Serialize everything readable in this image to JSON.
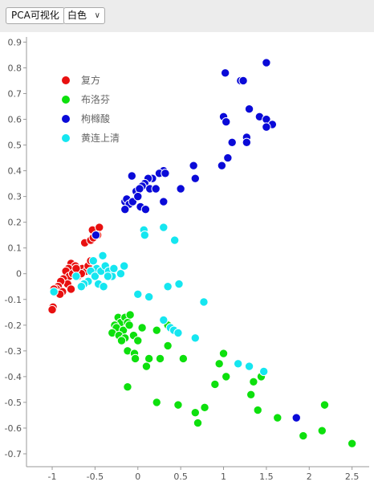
{
  "toolbar": {
    "pca_button_label": "PCA可视化",
    "theme_select_value": "白色",
    "theme_select_chevron": "chevron-down-icon"
  },
  "chart_data": {
    "type": "scatter",
    "title": "",
    "xlabel": "",
    "ylabel": "",
    "xlim": [
      -1.3,
      2.7
    ],
    "ylim": [
      -0.75,
      0.92
    ],
    "x_ticks": [
      -1,
      -0.5,
      0,
      0.5,
      1,
      1.5,
      2,
      2.5
    ],
    "x_tick_labels": [
      "-1",
      "-0.5",
      "0",
      "0.5",
      "1",
      "1.5",
      "2",
      "2.5"
    ],
    "y_ticks": [
      0.9,
      0.8,
      0.7,
      0.6,
      0.5,
      0.4,
      0.3,
      0.2,
      0.1,
      0,
      -0.1,
      -0.2,
      -0.3,
      -0.4,
      -0.5,
      -0.6,
      -0.7
    ],
    "y_tick_labels": [
      "0.9",
      "0.8",
      "0.7",
      "0.6",
      "0.5",
      "0.4",
      "0.3",
      "0.2",
      "0.1",
      "0",
      "-0.1",
      "-0.2",
      "-0.3",
      "-0.4",
      "-0.5",
      "-0.6",
      "-0.7"
    ],
    "grid": false,
    "legend_position": "top-left",
    "series": [
      {
        "name": "复方",
        "color": "#e81010",
        "points": [
          [
            -0.53,
            0.17
          ],
          [
            -0.45,
            0.18
          ],
          [
            -0.47,
            0.15
          ],
          [
            -0.62,
            0.12
          ],
          [
            -0.55,
            0.13
          ],
          [
            -0.78,
            0.04
          ],
          [
            -0.73,
            0.03
          ],
          [
            -0.65,
            0.02
          ],
          [
            -0.6,
            0.01
          ],
          [
            -0.81,
            0.02
          ],
          [
            -0.84,
            0.01
          ],
          [
            -0.8,
            -0.01
          ],
          [
            -0.87,
            -0.02
          ],
          [
            -0.82,
            -0.04
          ],
          [
            -0.78,
            -0.06
          ],
          [
            -0.9,
            -0.03
          ],
          [
            -0.93,
            -0.05
          ],
          [
            -0.95,
            -0.06
          ],
          [
            -0.88,
            -0.07
          ],
          [
            -0.91,
            -0.08
          ],
          [
            -0.98,
            -0.06
          ],
          [
            -0.76,
            0.0
          ],
          [
            -0.7,
            -0.01
          ],
          [
            -0.66,
            0.0
          ],
          [
            -0.72,
            0.02
          ],
          [
            -0.99,
            -0.13
          ],
          [
            -1.0,
            -0.14
          ],
          [
            -0.52,
            0.14
          ],
          [
            -0.58,
            0.03
          ],
          [
            -0.55,
            0.05
          ]
        ]
      },
      {
        "name": "布洛芬",
        "color": "#0de00d",
        "points": [
          [
            -0.23,
            -0.17
          ],
          [
            -0.2,
            -0.19
          ],
          [
            -0.15,
            -0.17
          ],
          [
            -0.12,
            -0.19
          ],
          [
            -0.09,
            -0.16
          ],
          [
            -0.27,
            -0.2
          ],
          [
            -0.25,
            -0.21
          ],
          [
            -0.17,
            -0.22
          ],
          [
            -0.1,
            -0.2
          ],
          [
            -0.05,
            -0.24
          ],
          [
            -0.3,
            -0.23
          ],
          [
            -0.22,
            -0.24
          ],
          [
            -0.15,
            -0.25
          ],
          [
            -0.19,
            -0.26
          ],
          [
            0.05,
            -0.21
          ],
          [
            0.22,
            -0.22
          ],
          [
            0.35,
            -0.2
          ],
          [
            0.35,
            -0.28
          ],
          [
            0.0,
            -0.26
          ],
          [
            -0.12,
            -0.3
          ],
          [
            -0.04,
            -0.31
          ],
          [
            -0.03,
            -0.33
          ],
          [
            0.13,
            -0.33
          ],
          [
            0.1,
            -0.36
          ],
          [
            0.26,
            -0.33
          ],
          [
            0.53,
            -0.33
          ],
          [
            0.95,
            -0.35
          ],
          [
            1.0,
            -0.31
          ],
          [
            1.03,
            -0.4
          ],
          [
            0.9,
            -0.43
          ],
          [
            -0.12,
            -0.44
          ],
          [
            0.22,
            -0.5
          ],
          [
            0.47,
            -0.51
          ],
          [
            0.78,
            -0.52
          ],
          [
            0.67,
            -0.54
          ],
          [
            0.7,
            -0.58
          ],
          [
            1.32,
            -0.47
          ],
          [
            1.4,
            -0.53
          ],
          [
            1.44,
            -0.4
          ],
          [
            1.63,
            -0.56
          ],
          [
            1.93,
            -0.63
          ],
          [
            2.18,
            -0.51
          ],
          [
            2.15,
            -0.61
          ],
          [
            2.5,
            -0.66
          ],
          [
            1.35,
            -0.42
          ]
        ]
      },
      {
        "name": "枸橼酸",
        "color": "#0a0ad8",
        "points": [
          [
            1.5,
            0.82
          ],
          [
            1.02,
            0.78
          ],
          [
            1.2,
            0.75
          ],
          [
            1.23,
            0.75
          ],
          [
            1.3,
            0.64
          ],
          [
            1.42,
            0.61
          ],
          [
            1.0,
            0.61
          ],
          [
            1.03,
            0.59
          ],
          [
            1.5,
            0.6
          ],
          [
            1.57,
            0.58
          ],
          [
            1.5,
            0.57
          ],
          [
            1.27,
            0.53
          ],
          [
            1.27,
            0.51
          ],
          [
            1.1,
            0.51
          ],
          [
            1.05,
            0.45
          ],
          [
            0.98,
            0.42
          ],
          [
            0.65,
            0.42
          ],
          [
            0.67,
            0.37
          ],
          [
            0.3,
            0.4
          ],
          [
            0.25,
            0.39
          ],
          [
            0.32,
            0.39
          ],
          [
            0.17,
            0.37
          ],
          [
            0.12,
            0.37
          ],
          [
            0.08,
            0.35
          ],
          [
            -0.07,
            0.38
          ],
          [
            0.05,
            0.34
          ],
          [
            -0.02,
            0.32
          ],
          [
            0.02,
            0.33
          ],
          [
            0.14,
            0.33
          ],
          [
            0.21,
            0.33
          ],
          [
            0.5,
            0.33
          ],
          [
            -0.15,
            0.28
          ],
          [
            -0.13,
            0.29
          ],
          [
            -0.1,
            0.27
          ],
          [
            -0.06,
            0.28
          ],
          [
            0.0,
            0.3
          ],
          [
            0.3,
            0.28
          ],
          [
            0.03,
            0.26
          ],
          [
            0.09,
            0.25
          ],
          [
            -0.15,
            0.25
          ],
          [
            -0.49,
            0.15
          ],
          [
            1.85,
            -0.56
          ]
        ]
      },
      {
        "name": "黄连上清",
        "color": "#15e6f0",
        "points": [
          [
            0.07,
            0.17
          ],
          [
            0.08,
            0.15
          ],
          [
            0.3,
            0.18
          ],
          [
            0.43,
            0.13
          ],
          [
            -0.41,
            0.07
          ],
          [
            -0.52,
            0.05
          ],
          [
            -0.48,
            0.02
          ],
          [
            -0.55,
            0.01
          ],
          [
            -0.5,
            -0.01
          ],
          [
            -0.43,
            0.01
          ],
          [
            -0.38,
            0.03
          ],
          [
            -0.34,
            0.01
          ],
          [
            -0.3,
            -0.01
          ],
          [
            -0.16,
            0.03
          ],
          [
            -0.28,
            0.02
          ],
          [
            -0.46,
            -0.04
          ],
          [
            -0.4,
            -0.05
          ],
          [
            -0.58,
            -0.03
          ],
          [
            -0.63,
            -0.04
          ],
          [
            -0.66,
            -0.05
          ],
          [
            -0.72,
            -0.01
          ],
          [
            -0.98,
            -0.07
          ],
          [
            0.0,
            -0.08
          ],
          [
            0.13,
            -0.09
          ],
          [
            0.35,
            -0.05
          ],
          [
            0.48,
            -0.04
          ],
          [
            0.77,
            -0.11
          ],
          [
            0.3,
            -0.18
          ],
          [
            0.38,
            -0.21
          ],
          [
            0.42,
            -0.22
          ],
          [
            0.47,
            -0.23
          ],
          [
            0.67,
            -0.25
          ],
          [
            1.17,
            -0.35
          ],
          [
            1.3,
            -0.36
          ],
          [
            1.47,
            -0.38
          ],
          [
            -0.35,
            -0.01
          ],
          [
            -0.2,
            0.0
          ]
        ]
      }
    ]
  }
}
